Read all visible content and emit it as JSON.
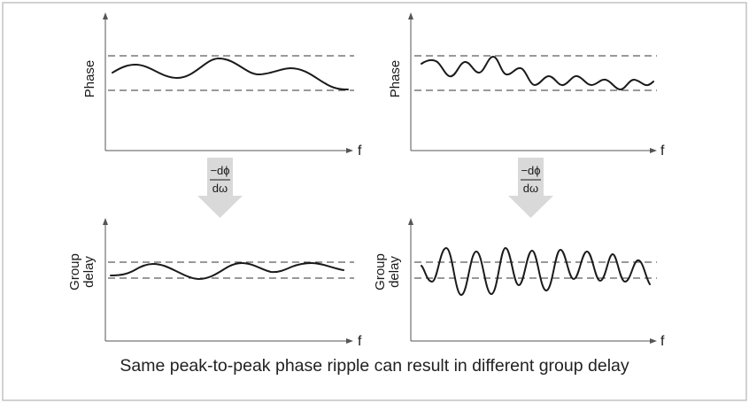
{
  "panels": [
    {
      "id": "top-left",
      "ylabel": [
        "Phase"
      ],
      "xlabel": "f"
    },
    {
      "id": "top-right",
      "ylabel": [
        "Phase"
      ],
      "xlabel": "f"
    },
    {
      "id": "bottom-left",
      "ylabel": [
        "Group",
        "delay"
      ],
      "xlabel": "f"
    },
    {
      "id": "bottom-right",
      "ylabel": [
        "Group",
        "delay"
      ],
      "xlabel": "f"
    }
  ],
  "operator": {
    "numerator": "−dϕ",
    "denominator": "dω"
  },
  "caption": "Same peak-to-peak phase ripple can result in different group delay",
  "colors": {
    "arrow": "#d9d9d9",
    "curve": "#1a1a1a",
    "frame": "#b5b5b5"
  }
}
